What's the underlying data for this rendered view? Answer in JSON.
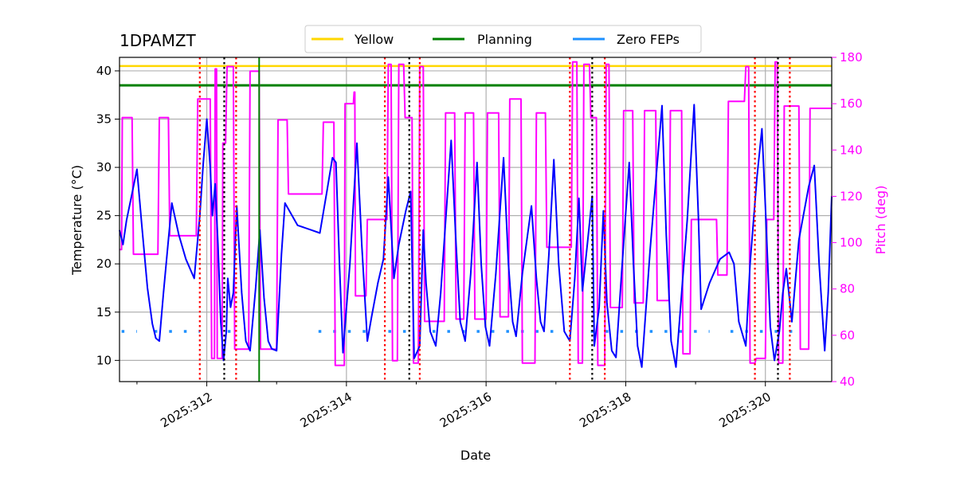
{
  "chart_data": {
    "type": "line",
    "title": "1DPAMZT",
    "xlabel": "Date",
    "ylabel": "Temperature ($^\\circ$C)",
    "ylabel_display": "Temperature (°C)",
    "y2label": "Pitch (deg)",
    "xlim": [
      310.75,
      320.95
    ],
    "ylim": [
      7.8,
      41.4
    ],
    "y2lim": [
      40,
      180
    ],
    "x_major_ticks": [
      312,
      314,
      316,
      318,
      320
    ],
    "x_tick_labels": [
      "2025:312",
      "2025:314",
      "2025:316",
      "2025:318",
      "2025:320"
    ],
    "x_minor_ticks": [
      311,
      313,
      315,
      317,
      319
    ],
    "y_ticks": [
      10,
      15,
      20,
      25,
      30,
      35,
      40
    ],
    "y_tick_labels": [
      "10",
      "15",
      "20",
      "25",
      "30",
      "35",
      "40"
    ],
    "y2_ticks": [
      40,
      60,
      80,
      100,
      120,
      140,
      160,
      180
    ],
    "y2_tick_labels": [
      "40",
      "60",
      "80",
      "100",
      "120",
      "140",
      "160",
      "180"
    ],
    "colors": {
      "temperature": "#0000ff",
      "pitch": "#ff00ff",
      "yellow": "#ffd700",
      "planning": "#008000",
      "zero_feps": "#1e90ff",
      "red_marker": "#ff0000",
      "black_marker": "#000000",
      "grid": "#b0b0b0"
    },
    "legend": {
      "placement": "top-center",
      "entries": [
        {
          "label": "Yellow",
          "color": "#ffd700"
        },
        {
          "label": "Planning",
          "color": "#008000"
        },
        {
          "label": "Zero FEPs",
          "color": "#1e90ff"
        }
      ]
    },
    "limits": {
      "yellow": 40.5,
      "planning": 38.5
    },
    "zero_feps_level": 13.0,
    "zero_feps_intervals": [
      [
        310.78,
        311.0
      ],
      [
        311.25,
        311.9
      ],
      [
        312.3,
        312.45
      ],
      [
        313.6,
        314.3
      ],
      [
        314.6,
        317.0
      ],
      [
        317.5,
        319.2
      ],
      [
        319.5,
        320.4
      ]
    ],
    "planning_vlines": [
      312.75
    ],
    "red_vlines": [
      311.9,
      312.42,
      314.55,
      315.05,
      317.2,
      317.7,
      319.85,
      320.35
    ],
    "black_vlines": [
      312.25,
      314.9,
      317.52,
      320.18
    ],
    "temperature_series": {
      "name": "1DPAMZT",
      "points": [
        [
          310.75,
          23.5
        ],
        [
          310.8,
          22.0
        ],
        [
          310.85,
          24.5
        ],
        [
          310.95,
          28.0
        ],
        [
          311.0,
          29.8
        ],
        [
          311.07,
          24.0
        ],
        [
          311.15,
          17.5
        ],
        [
          311.22,
          13.8
        ],
        [
          311.27,
          12.3
        ],
        [
          311.32,
          12.0
        ],
        [
          311.38,
          17.0
        ],
        [
          311.45,
          22.5
        ],
        [
          311.5,
          26.3
        ],
        [
          311.6,
          23.0
        ],
        [
          311.7,
          20.5
        ],
        [
          311.82,
          18.5
        ],
        [
          311.9,
          25.0
        ],
        [
          311.95,
          30.5
        ],
        [
          312.0,
          35.0
        ],
        [
          312.05,
          30.0
        ],
        [
          312.08,
          25.0
        ],
        [
          312.12,
          28.3
        ],
        [
          312.16,
          22.0
        ],
        [
          312.2,
          14.0
        ],
        [
          312.24,
          10.0
        ],
        [
          312.28,
          13.0
        ],
        [
          312.3,
          18.5
        ],
        [
          312.34,
          15.5
        ],
        [
          312.38,
          17.0
        ],
        [
          312.43,
          26.0
        ],
        [
          312.5,
          17.0
        ],
        [
          312.56,
          12.0
        ],
        [
          312.62,
          11.0
        ],
        [
          312.7,
          17.5
        ],
        [
          312.76,
          23.5
        ],
        [
          312.82,
          16.5
        ],
        [
          312.88,
          12.0
        ],
        [
          312.93,
          11.2
        ],
        [
          313.0,
          11.0
        ],
        [
          313.07,
          21.0
        ],
        [
          313.12,
          26.3
        ],
        [
          313.3,
          24.0
        ],
        [
          313.5,
          23.5
        ],
        [
          313.62,
          23.2
        ],
        [
          313.72,
          27.5
        ],
        [
          313.8,
          31.0
        ],
        [
          313.85,
          30.5
        ],
        [
          313.9,
          20.0
        ],
        [
          313.95,
          10.8
        ],
        [
          314.05,
          20.0
        ],
        [
          314.15,
          32.5
        ],
        [
          314.22,
          22.0
        ],
        [
          314.3,
          12.0
        ],
        [
          314.36,
          14.5
        ],
        [
          314.45,
          18.0
        ],
        [
          314.53,
          20.5
        ],
        [
          314.6,
          29.0
        ],
        [
          314.68,
          18.5
        ],
        [
          314.75,
          22.0
        ],
        [
          314.85,
          25.5
        ],
        [
          314.92,
          27.5
        ],
        [
          314.97,
          10.2
        ],
        [
          315.05,
          11.5
        ],
        [
          315.1,
          23.5
        ],
        [
          315.14,
          18.0
        ],
        [
          315.2,
          13.0
        ],
        [
          315.28,
          11.5
        ],
        [
          315.35,
          17.0
        ],
        [
          315.45,
          27.5
        ],
        [
          315.5,
          32.8
        ],
        [
          315.57,
          22.0
        ],
        [
          315.63,
          14.0
        ],
        [
          315.7,
          12.0
        ],
        [
          315.78,
          19.0
        ],
        [
          315.87,
          30.5
        ],
        [
          315.93,
          20.0
        ],
        [
          315.99,
          13.5
        ],
        [
          316.05,
          11.5
        ],
        [
          316.14,
          19.0
        ],
        [
          316.25,
          31.0
        ],
        [
          316.32,
          20.0
        ],
        [
          316.38,
          14.0
        ],
        [
          316.43,
          12.5
        ],
        [
          316.52,
          19.0
        ],
        [
          316.65,
          26.0
        ],
        [
          316.72,
          18.5
        ],
        [
          316.78,
          14.0
        ],
        [
          316.83,
          13.0
        ],
        [
          316.9,
          21.0
        ],
        [
          316.97,
          30.8
        ],
        [
          317.04,
          20.0
        ],
        [
          317.12,
          13.0
        ],
        [
          317.2,
          12.0
        ],
        [
          317.27,
          18.5
        ],
        [
          317.33,
          26.8
        ],
        [
          317.38,
          17.2
        ],
        [
          317.45,
          22.0
        ],
        [
          317.52,
          27.0
        ],
        [
          317.55,
          11.5
        ],
        [
          317.62,
          15.5
        ],
        [
          317.68,
          25.5
        ],
        [
          317.73,
          16.0
        ],
        [
          317.8,
          11.0
        ],
        [
          317.86,
          10.3
        ],
        [
          317.94,
          19.0
        ],
        [
          318.05,
          30.5
        ],
        [
          318.11,
          20.0
        ],
        [
          318.17,
          11.5
        ],
        [
          318.23,
          9.3
        ],
        [
          318.35,
          21.5
        ],
        [
          318.52,
          36.4
        ],
        [
          318.58,
          23.0
        ],
        [
          318.65,
          12.0
        ],
        [
          318.72,
          9.3
        ],
        [
          318.88,
          24.5
        ],
        [
          318.98,
          36.5
        ],
        [
          319.04,
          25.0
        ],
        [
          319.08,
          15.3
        ],
        [
          319.2,
          18.0
        ],
        [
          319.35,
          20.5
        ],
        [
          319.48,
          21.2
        ],
        [
          319.55,
          20.0
        ],
        [
          319.62,
          14.0
        ],
        [
          319.72,
          11.5
        ],
        [
          319.78,
          20.0
        ],
        [
          319.88,
          29.0
        ],
        [
          319.95,
          34.0
        ],
        [
          320.0,
          26.0
        ],
        [
          320.07,
          13.5
        ],
        [
          320.13,
          10.0
        ],
        [
          320.2,
          13.0
        ],
        [
          320.25,
          17.0
        ],
        [
          320.3,
          19.5
        ],
        [
          320.38,
          14.0
        ],
        [
          320.48,
          22.5
        ],
        [
          320.62,
          28.0
        ],
        [
          320.7,
          30.2
        ],
        [
          320.77,
          20.0
        ],
        [
          320.85,
          11.0
        ],
        [
          320.9,
          17.0
        ],
        [
          320.95,
          27.0
        ]
      ]
    },
    "pitch_series": {
      "name": "Pitch (deg)",
      "points": [
        [
          310.75,
          97
        ],
        [
          310.78,
          97
        ],
        [
          310.79,
          154
        ],
        [
          310.93,
          154
        ],
        [
          310.95,
          95
        ],
        [
          311.3,
          95
        ],
        [
          311.32,
          154
        ],
        [
          311.45,
          154
        ],
        [
          311.47,
          103
        ],
        [
          311.85,
          103
        ],
        [
          311.87,
          162
        ],
        [
          312.05,
          162
        ],
        [
          312.07,
          50
        ],
        [
          312.11,
          50
        ],
        [
          312.12,
          175
        ],
        [
          312.14,
          175
        ],
        [
          312.15,
          50
        ],
        [
          312.22,
          50
        ],
        [
          312.23,
          143
        ],
        [
          312.27,
          143
        ],
        [
          312.29,
          176
        ],
        [
          312.38,
          176
        ],
        [
          312.4,
          54
        ],
        [
          312.6,
          54
        ],
        [
          312.62,
          174
        ],
        [
          312.75,
          174
        ],
        [
          312.77,
          54
        ],
        [
          313.0,
          54
        ],
        [
          313.02,
          153
        ],
        [
          313.15,
          153
        ],
        [
          313.17,
          121
        ],
        [
          313.65,
          121
        ],
        [
          313.67,
          152
        ],
        [
          313.82,
          152
        ],
        [
          313.84,
          47
        ],
        [
          313.97,
          47
        ],
        [
          313.98,
          160
        ],
        [
          314.1,
          160
        ],
        [
          314.11,
          165
        ],
        [
          314.12,
          165
        ],
        [
          314.13,
          77
        ],
        [
          314.28,
          77
        ],
        [
          314.3,
          110
        ],
        [
          314.58,
          110
        ],
        [
          314.6,
          177
        ],
        [
          314.64,
          177
        ],
        [
          314.66,
          49
        ],
        [
          314.73,
          49
        ],
        [
          314.75,
          177
        ],
        [
          314.82,
          177
        ],
        [
          314.84,
          154
        ],
        [
          314.94,
          154
        ],
        [
          314.96,
          48
        ],
        [
          315.03,
          48
        ],
        [
          315.05,
          176
        ],
        [
          315.1,
          176
        ],
        [
          315.12,
          66
        ],
        [
          315.4,
          66
        ],
        [
          315.42,
          156
        ],
        [
          315.55,
          156
        ],
        [
          315.57,
          67
        ],
        [
          315.68,
          67
        ],
        [
          315.7,
          156
        ],
        [
          315.82,
          156
        ],
        [
          315.84,
          67
        ],
        [
          316.0,
          67
        ],
        [
          316.02,
          156
        ],
        [
          316.18,
          156
        ],
        [
          316.2,
          68
        ],
        [
          316.32,
          68
        ],
        [
          316.34,
          162
        ],
        [
          316.5,
          162
        ],
        [
          316.52,
          48
        ],
        [
          316.7,
          48
        ],
        [
          316.72,
          156
        ],
        [
          316.85,
          156
        ],
        [
          316.87,
          98
        ],
        [
          317.22,
          98
        ],
        [
          317.24,
          178
        ],
        [
          317.3,
          178
        ],
        [
          317.32,
          48
        ],
        [
          317.38,
          48
        ],
        [
          317.4,
          177
        ],
        [
          317.48,
          177
        ],
        [
          317.5,
          154
        ],
        [
          317.58,
          154
        ],
        [
          317.6,
          47
        ],
        [
          317.7,
          47
        ],
        [
          317.72,
          177
        ],
        [
          317.76,
          177
        ],
        [
          317.78,
          72
        ],
        [
          317.95,
          72
        ],
        [
          317.97,
          157
        ],
        [
          318.1,
          157
        ],
        [
          318.12,
          74
        ],
        [
          318.25,
          74
        ],
        [
          318.27,
          157
        ],
        [
          318.43,
          157
        ],
        [
          318.45,
          75
        ],
        [
          318.62,
          75
        ],
        [
          318.64,
          157
        ],
        [
          318.8,
          157
        ],
        [
          318.82,
          52
        ],
        [
          318.92,
          52
        ],
        [
          318.94,
          110
        ],
        [
          319.3,
          110
        ],
        [
          319.32,
          86
        ],
        [
          319.45,
          86
        ],
        [
          319.47,
          161
        ],
        [
          319.7,
          161
        ],
        [
          319.72,
          176
        ],
        [
          319.76,
          176
        ],
        [
          319.78,
          48
        ],
        [
          319.85,
          48
        ],
        [
          319.87,
          50
        ],
        [
          320.0,
          50
        ],
        [
          320.02,
          110
        ],
        [
          320.12,
          110
        ],
        [
          320.14,
          178
        ],
        [
          320.17,
          178
        ],
        [
          320.19,
          48
        ],
        [
          320.25,
          48
        ],
        [
          320.27,
          159
        ],
        [
          320.48,
          159
        ],
        [
          320.5,
          54
        ],
        [
          320.62,
          54
        ],
        [
          320.64,
          158
        ],
        [
          320.95,
          158
        ]
      ]
    }
  }
}
